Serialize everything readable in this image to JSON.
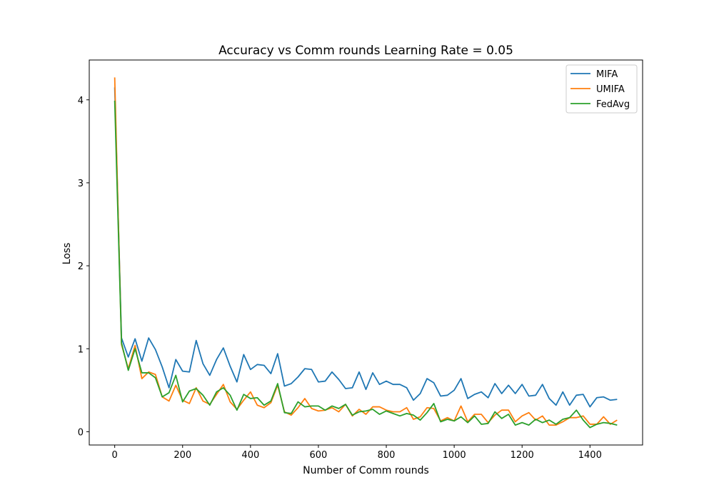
{
  "chart_data": {
    "type": "line",
    "title": "Accuracy vs Comm rounds Learning Rate = 0.05",
    "xlabel": "Number of Comm rounds",
    "ylabel": "Loss",
    "xlim": [
      -75,
      1555
    ],
    "ylim": [
      -0.16,
      4.48
    ],
    "xticks": [
      0,
      200,
      400,
      600,
      800,
      1000,
      1200,
      1400
    ],
    "yticks": [
      0,
      1,
      2,
      3,
      4
    ],
    "grid": false,
    "legend_position": "top-right",
    "x": [
      0,
      20,
      40,
      60,
      80,
      100,
      120,
      140,
      160,
      180,
      200,
      220,
      240,
      260,
      280,
      300,
      320,
      340,
      360,
      380,
      400,
      420,
      440,
      460,
      480,
      500,
      520,
      540,
      560,
      580,
      600,
      620,
      640,
      660,
      680,
      700,
      720,
      740,
      760,
      780,
      800,
      820,
      840,
      860,
      880,
      900,
      920,
      940,
      960,
      980,
      1000,
      1020,
      1040,
      1060,
      1080,
      1100,
      1120,
      1140,
      1160,
      1180,
      1200,
      1220,
      1240,
      1260,
      1280,
      1300,
      1320,
      1340,
      1360,
      1380,
      1400,
      1420,
      1440,
      1460,
      1480
    ],
    "series": [
      {
        "name": "MIFA",
        "color": "#1f77b4",
        "values": [
          4.15,
          1.13,
          0.9,
          1.12,
          0.85,
          1.13,
          0.99,
          0.78,
          0.53,
          0.87,
          0.73,
          0.72,
          1.1,
          0.82,
          0.68,
          0.87,
          1.01,
          0.79,
          0.6,
          0.93,
          0.75,
          0.81,
          0.8,
          0.7,
          0.94,
          0.55,
          0.58,
          0.66,
          0.76,
          0.75,
          0.6,
          0.61,
          0.72,
          0.63,
          0.52,
          0.53,
          0.72,
          0.51,
          0.71,
          0.57,
          0.61,
          0.57,
          0.57,
          0.53,
          0.38,
          0.46,
          0.64,
          0.59,
          0.43,
          0.44,
          0.5,
          0.64,
          0.4,
          0.45,
          0.48,
          0.41,
          0.58,
          0.46,
          0.56,
          0.46,
          0.57,
          0.43,
          0.44,
          0.57,
          0.4,
          0.32,
          0.48,
          0.32,
          0.44,
          0.45,
          0.3,
          0.41,
          0.42,
          0.38,
          0.39
        ]
      },
      {
        "name": "UMIFA",
        "color": "#ff7f0e",
        "values": [
          4.27,
          1.05,
          0.76,
          1.04,
          0.64,
          0.72,
          0.69,
          0.42,
          0.37,
          0.56,
          0.38,
          0.34,
          0.53,
          0.37,
          0.33,
          0.45,
          0.57,
          0.36,
          0.27,
          0.38,
          0.48,
          0.32,
          0.29,
          0.35,
          0.56,
          0.24,
          0.2,
          0.29,
          0.4,
          0.28,
          0.25,
          0.26,
          0.29,
          0.24,
          0.33,
          0.19,
          0.27,
          0.21,
          0.3,
          0.3,
          0.26,
          0.24,
          0.24,
          0.29,
          0.15,
          0.18,
          0.29,
          0.28,
          0.13,
          0.17,
          0.13,
          0.31,
          0.12,
          0.21,
          0.21,
          0.11,
          0.2,
          0.26,
          0.26,
          0.12,
          0.19,
          0.23,
          0.14,
          0.19,
          0.08,
          0.08,
          0.12,
          0.17,
          0.17,
          0.19,
          0.09,
          0.09,
          0.18,
          0.09,
          0.14
        ]
      },
      {
        "name": "FedAvg",
        "color": "#2ca02c",
        "values": [
          3.99,
          1.07,
          0.74,
          1.0,
          0.71,
          0.71,
          0.65,
          0.42,
          0.47,
          0.68,
          0.36,
          0.49,
          0.52,
          0.44,
          0.32,
          0.48,
          0.53,
          0.44,
          0.26,
          0.45,
          0.4,
          0.41,
          0.32,
          0.37,
          0.58,
          0.23,
          0.22,
          0.36,
          0.3,
          0.31,
          0.31,
          0.26,
          0.31,
          0.28,
          0.33,
          0.2,
          0.24,
          0.25,
          0.27,
          0.21,
          0.25,
          0.22,
          0.19,
          0.22,
          0.2,
          0.14,
          0.23,
          0.34,
          0.12,
          0.15,
          0.13,
          0.18,
          0.11,
          0.19,
          0.09,
          0.1,
          0.24,
          0.16,
          0.21,
          0.08,
          0.11,
          0.08,
          0.15,
          0.11,
          0.14,
          0.09,
          0.15,
          0.17,
          0.26,
          0.14,
          0.05,
          0.09,
          0.11,
          0.1,
          0.08
        ]
      }
    ]
  }
}
